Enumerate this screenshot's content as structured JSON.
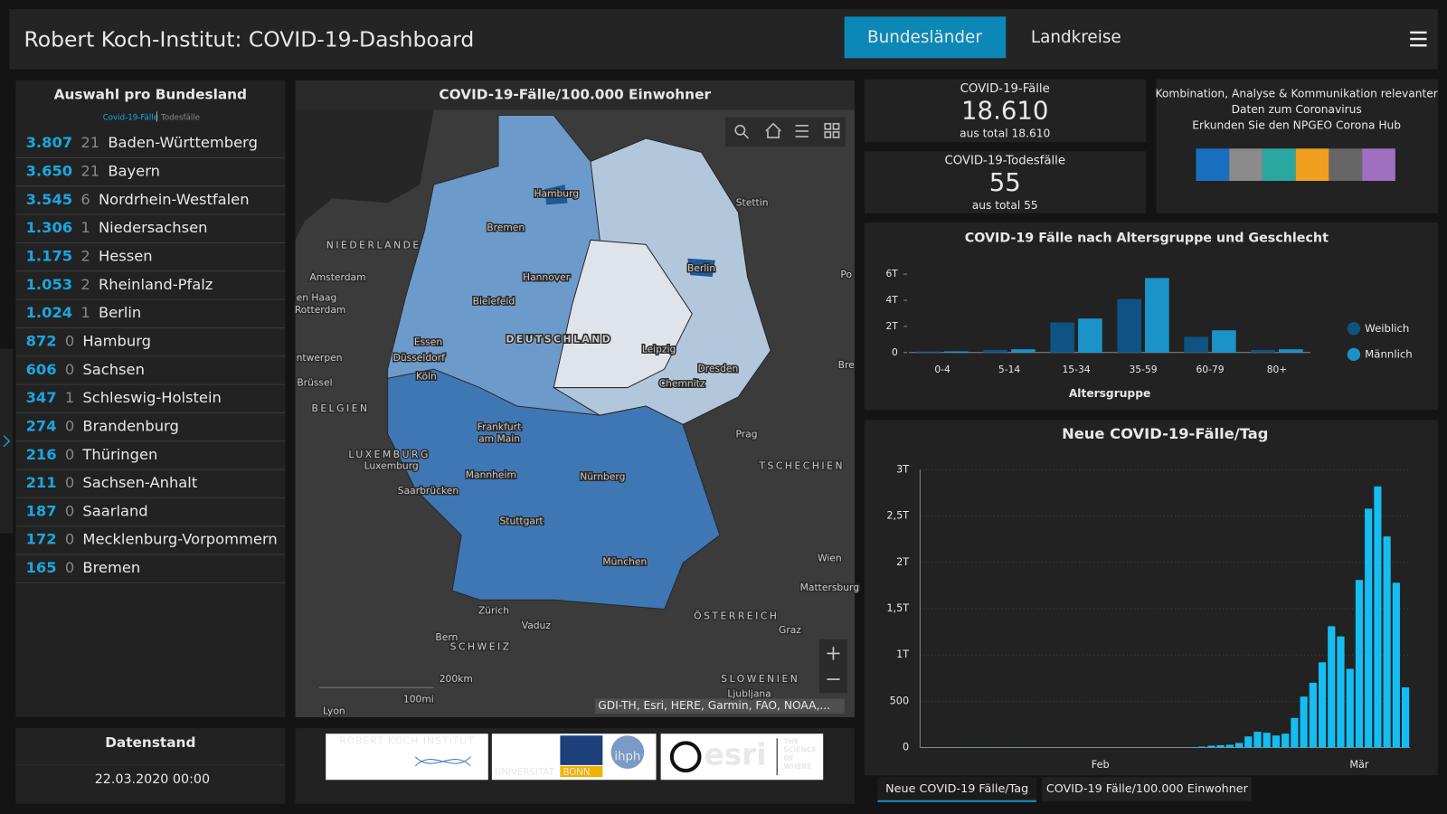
{
  "header": {
    "title": "Robert Koch-Institut: COVID-19-Dashboard",
    "tabs": [
      "Bundesländer",
      "Landkreise"
    ]
  },
  "list": {
    "title": "Auswahl pro Bundesland",
    "legend": [
      "Covid-19-Fälle",
      "Todesfälle"
    ],
    "rows": [
      {
        "cases": "3.807",
        "deaths": 21,
        "name": "Baden-Württemberg"
      },
      {
        "cases": "3.650",
        "deaths": 21,
        "name": "Bayern"
      },
      {
        "cases": "3.545",
        "deaths": 6,
        "name": "Nordrhein-Westfalen"
      },
      {
        "cases": "1.306",
        "deaths": 1,
        "name": "Niedersachsen"
      },
      {
        "cases": "1.175",
        "deaths": 2,
        "name": "Hessen"
      },
      {
        "cases": "1.053",
        "deaths": 2,
        "name": "Rheinland-Pfalz"
      },
      {
        "cases": "1.024",
        "deaths": 1,
        "name": "Berlin"
      },
      {
        "cases": "872",
        "deaths": 0,
        "name": "Hamburg"
      },
      {
        "cases": "606",
        "deaths": 0,
        "name": "Sachsen"
      },
      {
        "cases": "347",
        "deaths": 1,
        "name": "Schleswig-Holstein"
      },
      {
        "cases": "274",
        "deaths": 0,
        "name": "Brandenburg"
      },
      {
        "cases": "216",
        "deaths": 0,
        "name": "Thüringen"
      },
      {
        "cases": "211",
        "deaths": 0,
        "name": "Sachsen-Anhalt"
      },
      {
        "cases": "187",
        "deaths": 0,
        "name": "Saarland"
      },
      {
        "cases": "172",
        "deaths": 0,
        "name": "Mecklenburg-Vorpommern"
      },
      {
        "cases": "165",
        "deaths": 0,
        "name": "Bremen"
      }
    ]
  },
  "status": {
    "title": "Datenstand",
    "date": "22.03.2020 00:00"
  },
  "map": {
    "title": "COVID-19-Fälle/100.000 Einwohner",
    "attribution": "GDI-TH, Esri, HERE, Garmin, FAO, NOAA,...",
    "scale": [
      "200km",
      "100mi"
    ],
    "labels": [
      "Hamburg",
      "Bremen",
      "Stettin",
      "NIEDERLANDE",
      "Amsterdam",
      "Hannover",
      "Berlin",
      "Po",
      "en Haag",
      "Rotterdam",
      "Bielefeld",
      "DEUTSCHLAND",
      "Essen",
      "Düsseldorf",
      "Leipzig",
      "ntwerpen",
      "Köln",
      "Dresden",
      "Bre",
      "Brüssel",
      "Chemnitz",
      "BELGIEN",
      "Prag",
      "Frankfurt",
      "am Main",
      "LUXEMBURG",
      "Luxemburg",
      "Mannheim",
      "Nürnberg",
      "TSCHECHIEN",
      "Saarbrücken",
      "Stuttgart",
      "München",
      "Wien",
      "Mattersburg",
      "Zürich",
      "Vaduz",
      "ÖSTERREICH",
      "Graz",
      "Bern",
      "SCHWEIZ",
      "SLOWENIEN",
      "Ljubljana",
      "Lyon"
    ]
  },
  "logos": [
    "ROBERT KOCH INSTITUT",
    "UNIVERSITÄT",
    "BONN",
    "ihph",
    "esri",
    "THE",
    "SCIENCE",
    "OF",
    "WHERE"
  ],
  "stats": [
    {
      "title": "COVID-19-Fälle",
      "value": "18.610",
      "sub": "aus total 18.610"
    },
    {
      "title": "COVID-19-Todesfälle",
      "value": "55",
      "sub": "aus total 55"
    }
  ],
  "hub": {
    "text": [
      "Kombination, Analyse & Kommunikation relevanter",
      "Daten zum Coronavirus"
    ],
    "link": "Erkunden Sie den NPGEO Corona Hub"
  },
  "chart_data": [
    {
      "type": "bar",
      "title": "COVID-19 Fälle nach Altersgruppe und Geschlecht",
      "xlabel": "Altersgruppe",
      "categories": [
        "0-4",
        "5-14",
        "15-34",
        "35-59",
        "60-79",
        "80+"
      ],
      "series": [
        {
          "name": "Weiblich",
          "color": "#0e5384",
          "values": [
            80,
            200,
            2300,
            4100,
            1200,
            200
          ]
        },
        {
          "name": "Männlich",
          "color": "#1a93c8",
          "values": [
            90,
            250,
            2600,
            5700,
            1700,
            250
          ]
        }
      ],
      "ylim": [
        0,
        6000
      ],
      "yticks": [
        0,
        {
          "value": 2000,
          "label": "2T"
        },
        {
          "value": 4000,
          "label": "4T"
        },
        {
          "value": 6000,
          "label": "6T"
        }
      ],
      "grid": false,
      "legend": "right"
    },
    {
      "type": "bar",
      "title": "Neue COVID-19-Fälle/Tag",
      "color": "#14bdf2",
      "categories": [
        null,
        null,
        null,
        null,
        null,
        null,
        null,
        null,
        null,
        null,
        null,
        null,
        null,
        null,
        null,
        null,
        null,
        null,
        null,
        "Feb",
        null,
        null,
        null,
        null,
        null,
        null,
        null,
        null,
        null,
        null,
        null,
        null,
        null,
        null,
        null,
        null,
        null,
        null,
        null,
        null,
        null,
        null,
        null,
        null,
        null,
        null,
        null,
        "Mär",
        null,
        null,
        null,
        null,
        null
      ],
      "values": [
        0,
        0,
        0,
        0,
        2,
        1,
        3,
        0,
        0,
        1,
        2,
        0,
        1,
        1,
        0,
        0,
        0,
        0,
        2,
        0,
        0,
        0,
        0,
        0,
        0,
        0,
        0,
        0,
        0,
        5,
        10,
        20,
        25,
        30,
        50,
        120,
        170,
        160,
        130,
        150,
        320,
        550,
        700,
        920,
        1310,
        1200,
        850,
        1810,
        2580,
        2820,
        2280,
        1780,
        650
      ],
      "ylim": [
        0,
        3000
      ],
      "yticks": [
        0,
        500,
        {
          "value": 1000,
          "label": "1T"
        },
        {
          "value": 1500,
          "label": "1,5T"
        },
        {
          "value": 2000,
          "label": "2T"
        },
        {
          "value": 2500,
          "label": "2,5T"
        },
        {
          "value": 3000,
          "label": "3T"
        }
      ],
      "grid": true,
      "tabs": [
        "Neue COVID-19 Fälle/Tag",
        "COVID-19 Fälle/100.000 Einwohner"
      ]
    }
  ]
}
